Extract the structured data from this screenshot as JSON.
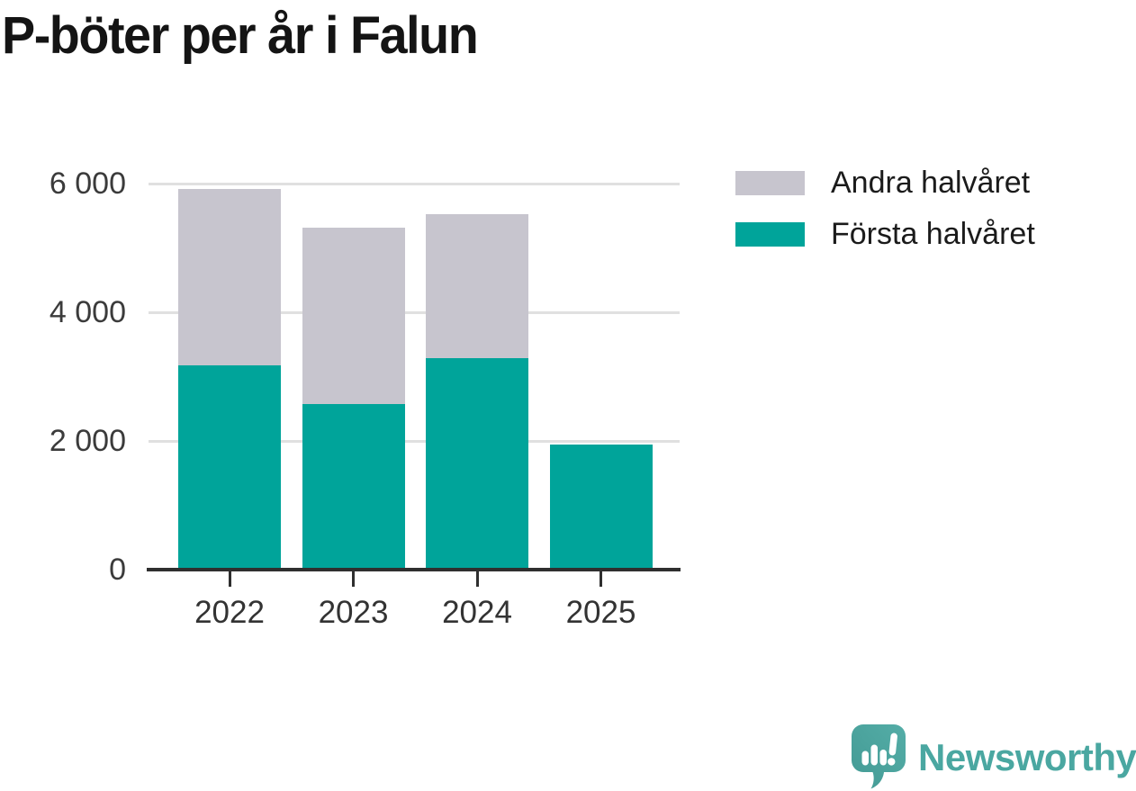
{
  "title": "P-böter per år i Falun",
  "chart_data": {
    "type": "bar",
    "subtype": "stacked-vertical",
    "categories": [
      "2022",
      "2023",
      "2024",
      "2025"
    ],
    "series": [
      {
        "name": "Första halvåret",
        "color": "#00A49A",
        "values": [
          3180,
          2580,
          3280,
          1950
        ]
      },
      {
        "name": "Andra halvåret",
        "color": "#C7C5CE",
        "values": [
          2740,
          2740,
          2250,
          0
        ]
      }
    ],
    "totals": [
      5920,
      5320,
      5530,
      1950
    ],
    "title": "P-böter per år i Falun",
    "xlabel": "",
    "ylabel": "",
    "ylim": [
      0,
      6000
    ],
    "y_ticks": [
      0,
      2000,
      4000,
      6000
    ],
    "y_tick_labels": [
      "0",
      "2 000",
      "4 000",
      "6 000"
    ],
    "grid": "horizontal",
    "legend_position": "top-right",
    "legend_order": [
      "Andra halvåret",
      "Första halvåret"
    ]
  },
  "legend": {
    "andra_label": "Andra halvåret",
    "forsta_label": "Första halvåret"
  },
  "branding": {
    "logo_text": "Newsworthy",
    "logo_color": "#4AA7A1",
    "icon_name": "newsworthy-speech-bubble-chart-icon",
    "icon_color_top": "#54ADA7",
    "icon_color_bottom": "#439A94"
  }
}
